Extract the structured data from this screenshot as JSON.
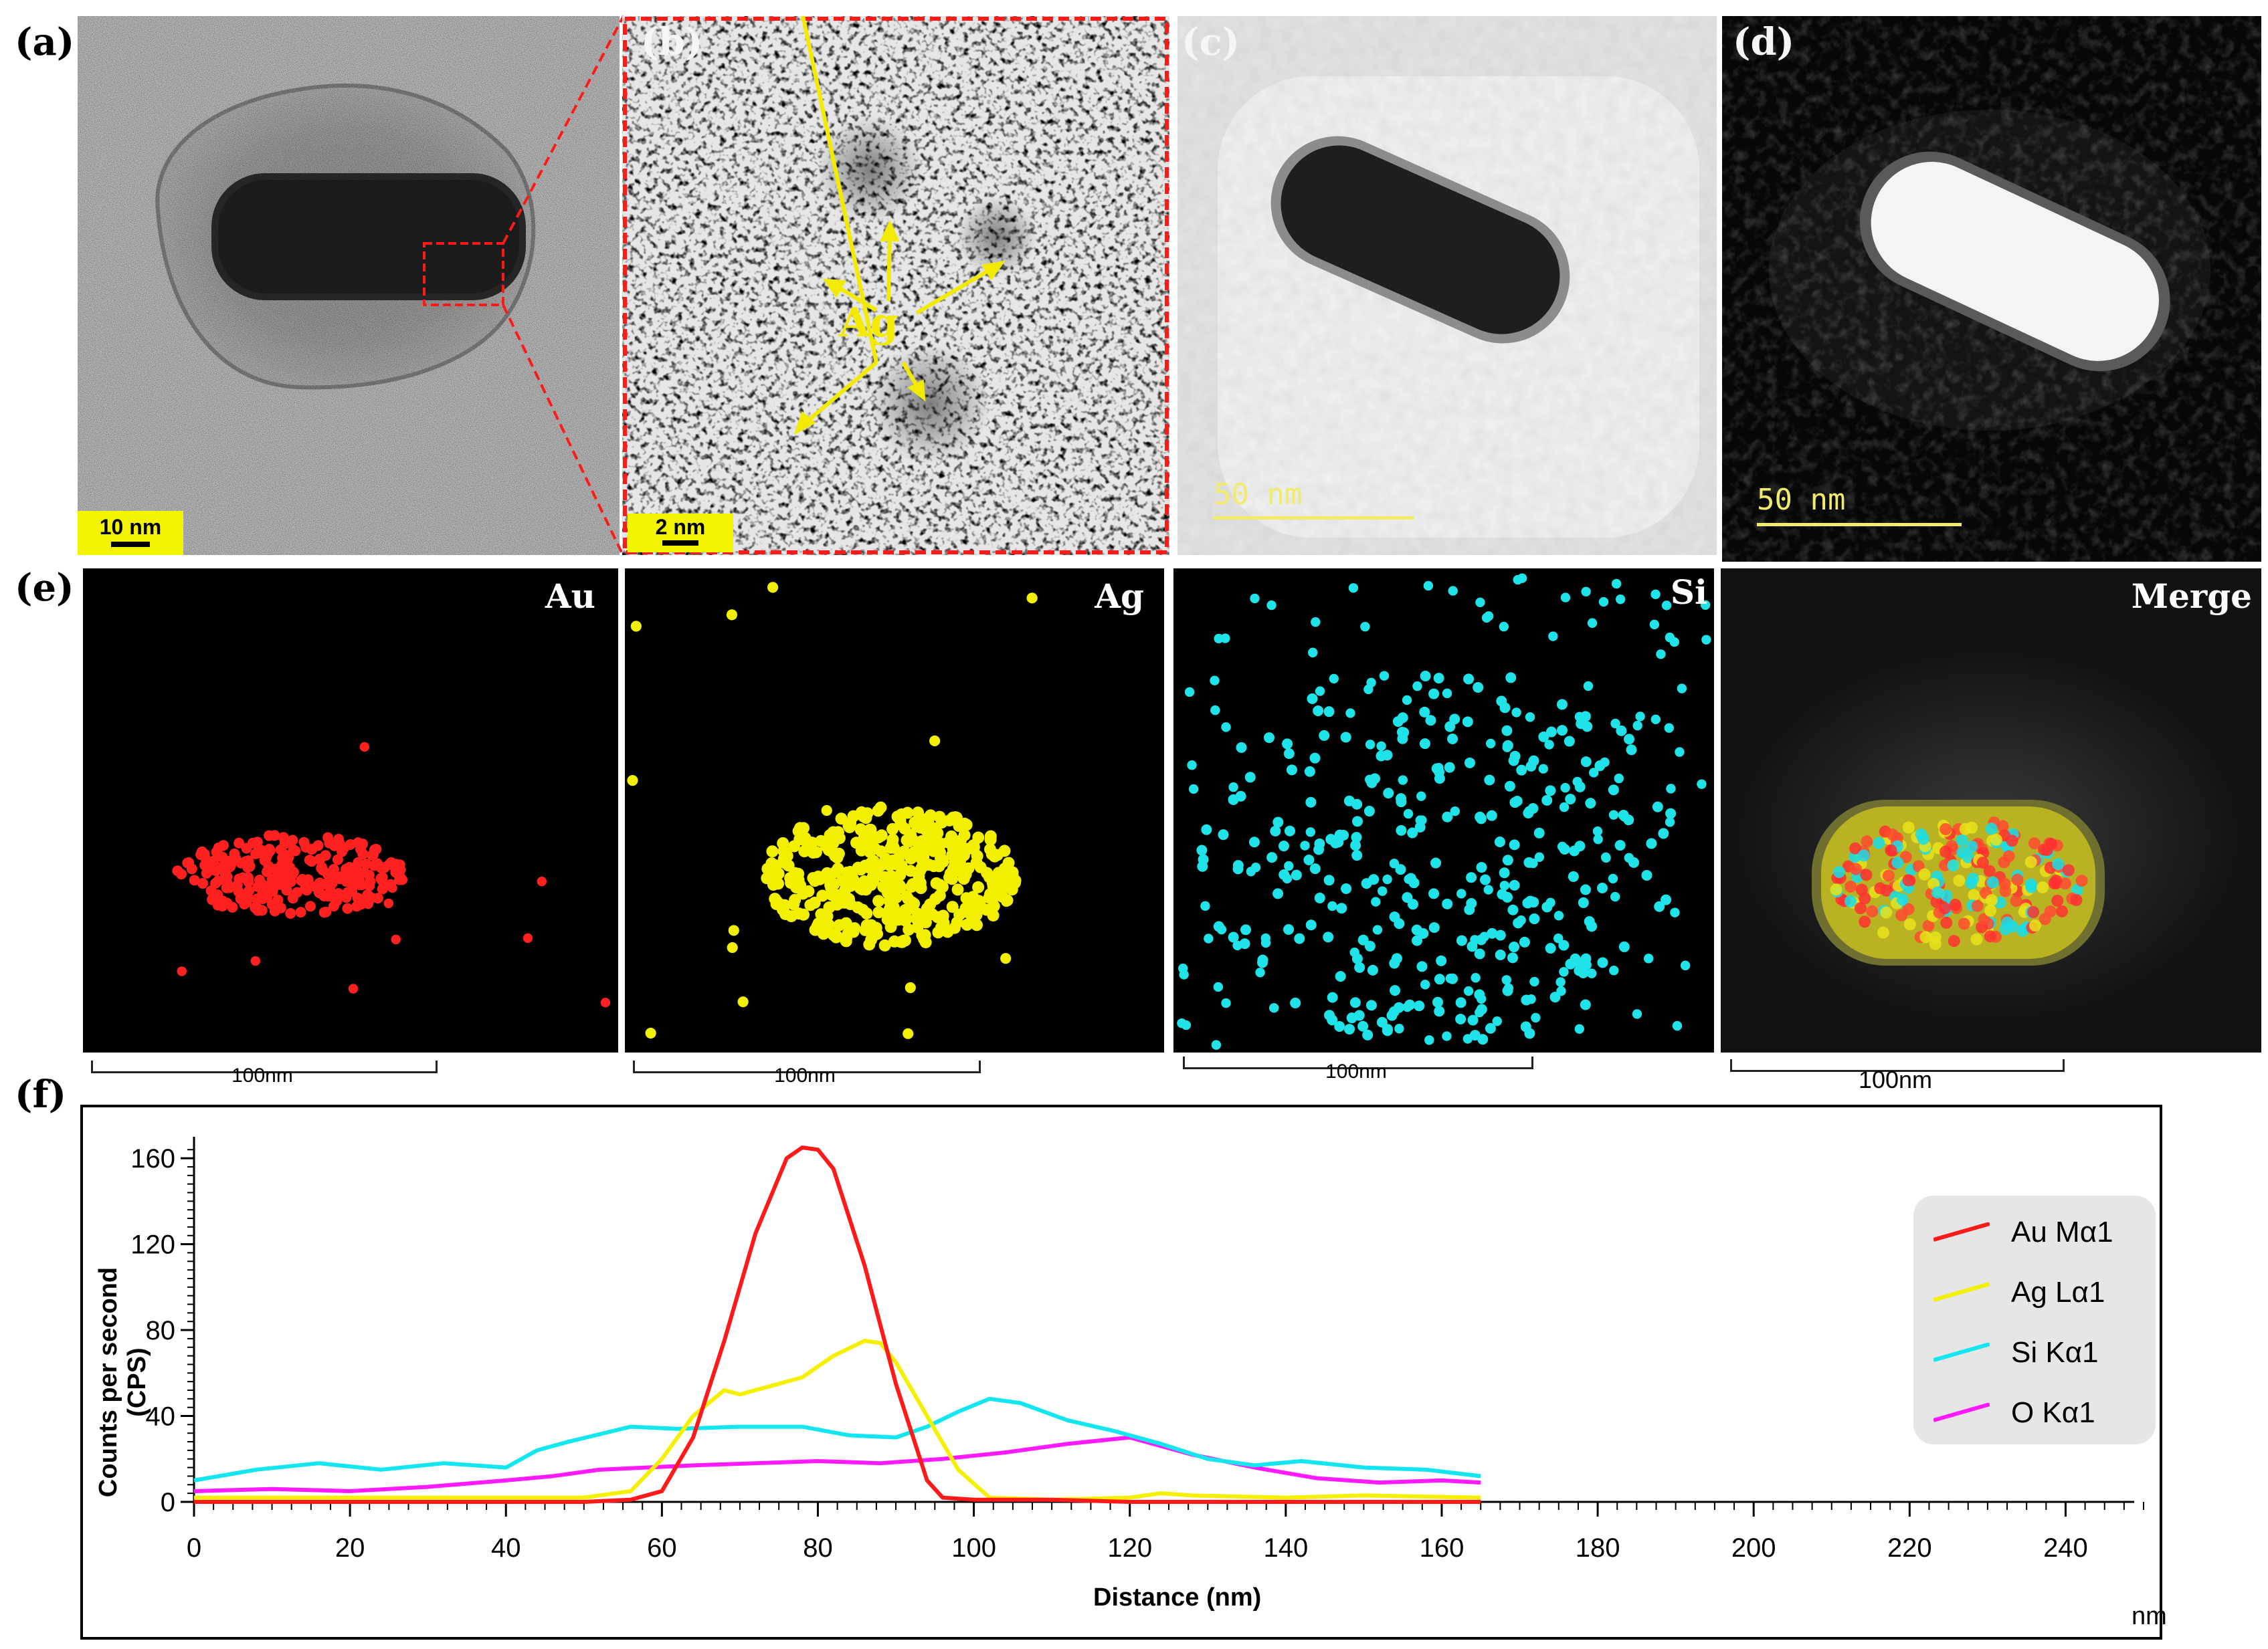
{
  "figure": {
    "labels": {
      "a": "(a)",
      "b": "(b)",
      "c": "(c)",
      "d": "(d)",
      "e": "(e)",
      "f": "(f)"
    },
    "scale_bars": {
      "a": "10 nm",
      "b": "2 nm",
      "c": "50 nm",
      "d": "50 nm"
    },
    "arrow_label_b": "Ag",
    "eds_maps": [
      {
        "element": "Au",
        "scale": "100nm",
        "color": "#ff2020"
      },
      {
        "element": "Ag",
        "scale": "100nm",
        "color": "#f2f000"
      },
      {
        "element": "Si",
        "scale": "100nm",
        "color": "#1fe3e8"
      },
      {
        "element": "Merge",
        "scale": "100nm",
        "color": "#ffffff"
      }
    ]
  },
  "chart_data": {
    "type": "line",
    "title": "",
    "xlabel": "Distance (nm)",
    "ylabel": "Counts per second (CPS)",
    "x_unit_label": "nm",
    "xlim": [
      0,
      250
    ],
    "ylim": [
      0,
      170
    ],
    "xticks": [
      0,
      20,
      40,
      60,
      80,
      100,
      120,
      140,
      160,
      180,
      200,
      220,
      240
    ],
    "yticks": [
      0,
      40,
      80,
      120,
      160
    ],
    "legend_position": "top-right",
    "series": [
      {
        "name": "Au Mα1",
        "color": "#ff1a1a",
        "x": [
          0,
          50,
          56,
          60,
          64,
          68,
          72,
          76,
          78,
          80,
          82,
          86,
          90,
          94,
          96,
          100,
          110,
          120,
          130,
          140,
          150,
          160,
          165
        ],
        "y": [
          0,
          0,
          1,
          5,
          30,
          75,
          125,
          160,
          165,
          164,
          155,
          110,
          55,
          10,
          2,
          1,
          1,
          0,
          0,
          0,
          0,
          0,
          0
        ]
      },
      {
        "name": "Ag Lα1",
        "color": "#f5f000",
        "x": [
          0,
          50,
          56,
          60,
          64,
          68,
          70,
          74,
          78,
          82,
          86,
          88,
          90,
          94,
          98,
          102,
          110,
          120,
          124,
          128,
          140,
          150,
          165
        ],
        "y": [
          2,
          2,
          5,
          20,
          40,
          52,
          50,
          54,
          58,
          68,
          75,
          74,
          65,
          40,
          15,
          2,
          1,
          2,
          4,
          3,
          2,
          3,
          2
        ]
      },
      {
        "name": "Si Kα1",
        "color": "#13e6ee",
        "x": [
          0,
          8,
          16,
          24,
          32,
          40,
          44,
          48,
          56,
          62,
          70,
          78,
          84,
          90,
          94,
          98,
          102,
          106,
          112,
          118,
          124,
          130,
          136,
          142,
          150,
          158,
          165
        ],
        "y": [
          10,
          15,
          18,
          15,
          18,
          16,
          24,
          28,
          35,
          34,
          35,
          35,
          31,
          30,
          35,
          42,
          48,
          46,
          38,
          33,
          27,
          20,
          17,
          19,
          16,
          15,
          12
        ]
      },
      {
        "name": "O Kα1",
        "color": "#ff1aff",
        "x": [
          0,
          10,
          20,
          30,
          40,
          46,
          52,
          58,
          64,
          72,
          80,
          88,
          96,
          104,
          112,
          120,
          128,
          136,
          144,
          152,
          160,
          165
        ],
        "y": [
          5,
          6,
          5,
          7,
          10,
          12,
          15,
          16,
          17,
          18,
          19,
          18,
          20,
          23,
          27,
          30,
          22,
          16,
          11,
          9,
          10,
          9
        ]
      }
    ]
  }
}
